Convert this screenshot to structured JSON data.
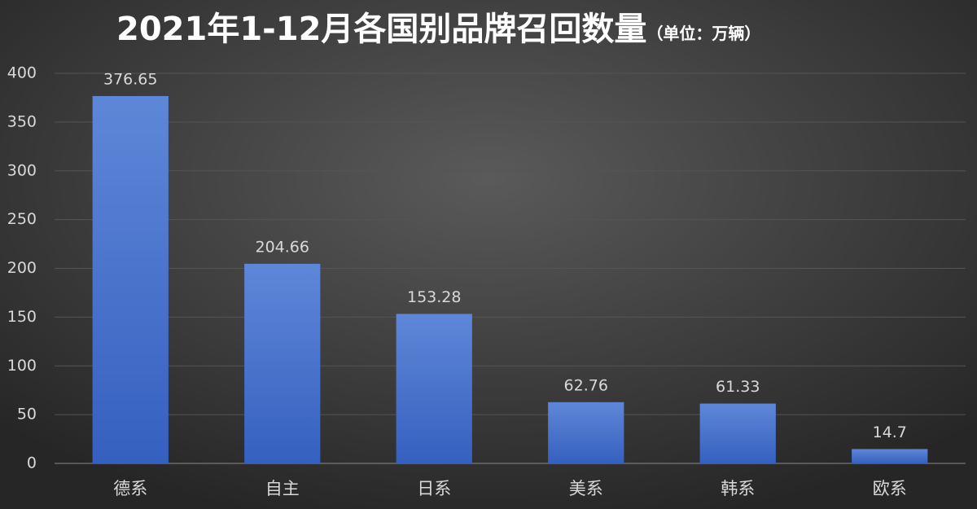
{
  "chart_data": {
    "type": "bar",
    "title": "2021年1-12月各国别品牌召回数量",
    "subtitle": "（单位：万辆）",
    "categories": [
      "德系",
      "自主",
      "日系",
      "美系",
      "韩系",
      "欧系"
    ],
    "values": [
      376.65,
      204.66,
      153.28,
      62.76,
      61.33,
      14.7
    ],
    "color": "#4a74cf",
    "ylim": [
      0,
      400
    ],
    "yticks": [
      0,
      50,
      100,
      150,
      200,
      250,
      300,
      350,
      400
    ],
    "grid": true
  }
}
